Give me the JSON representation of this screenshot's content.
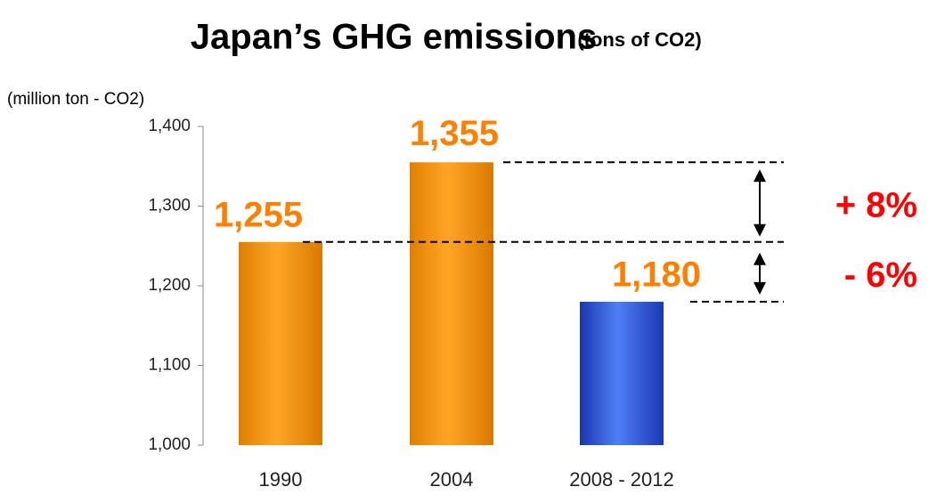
{
  "chart_data": {
    "type": "bar",
    "title": "Japan’s GHG emissions",
    "subtitle": "(tons of CO2)",
    "y_axis_label": "(million ton - CO2)",
    "categories": [
      "1990",
      "2004",
      "2008 - 2012"
    ],
    "values": [
      1255,
      1355,
      1180
    ],
    "value_labels": [
      "1,255",
      "1,355",
      "1,180"
    ],
    "colors": [
      "#f39200",
      "#f39200",
      "#2f55d4"
    ],
    "label_color": "#ff7f00",
    "ylim": [
      1000,
      1400
    ],
    "yticks": [
      {
        "value": 1000,
        "label": "1,000"
      },
      {
        "value": 1100,
        "label": "1,100"
      },
      {
        "value": 1200,
        "label": "1,200"
      },
      {
        "value": 1300,
        "label": "1,300"
      },
      {
        "value": 1400,
        "label": "1,400"
      }
    ],
    "annotations": [
      "+ 8%",
      "- 6%"
    ],
    "annotation_color": "#ff0000"
  }
}
